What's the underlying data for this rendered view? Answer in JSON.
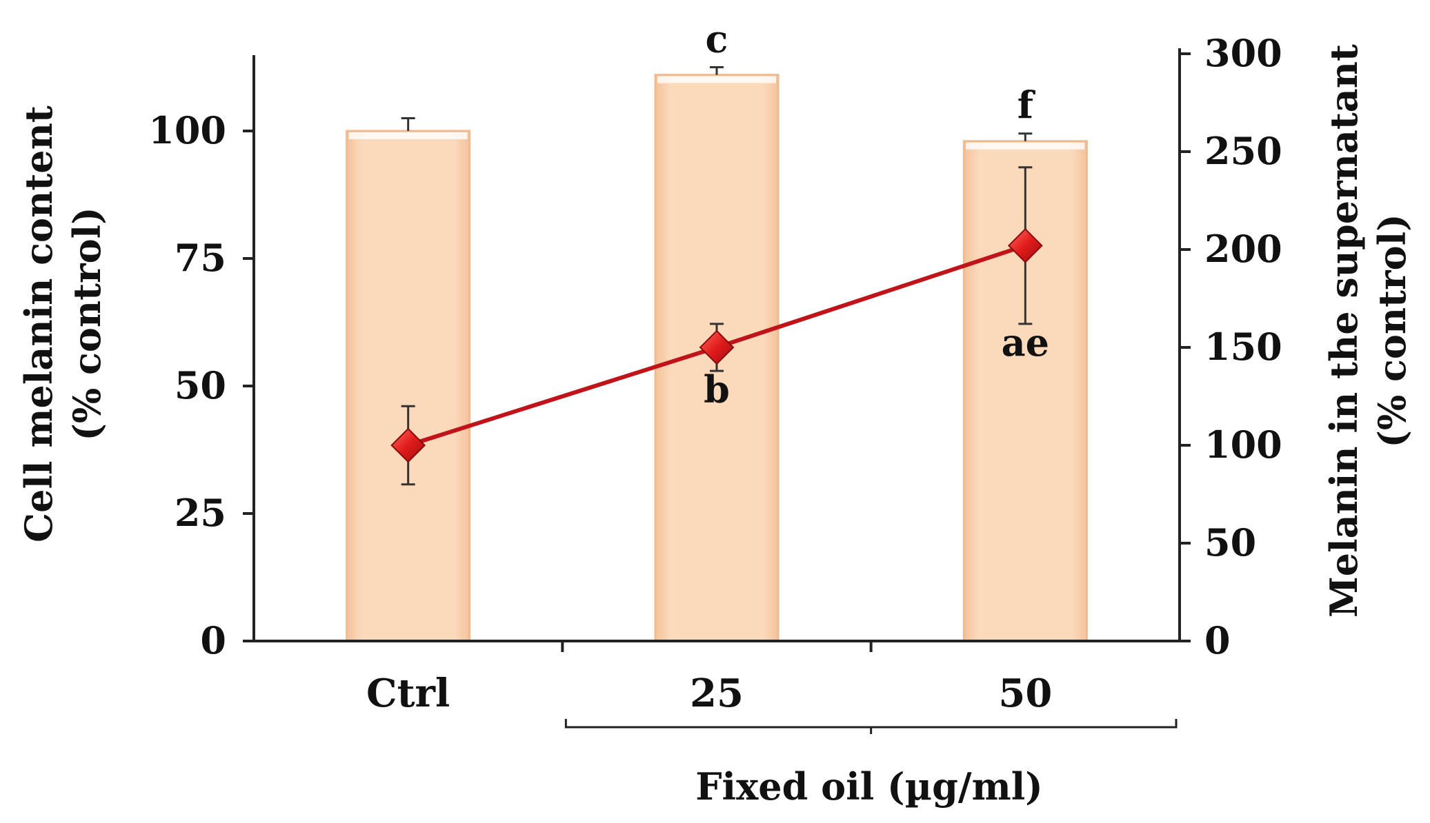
{
  "chart_data": {
    "type": "bar",
    "categories": [
      "Ctrl",
      "25",
      "50"
    ],
    "xlabel": "Fixed oil (µg/ml)",
    "ylabel": "Cell melanin content",
    "ylabel_unit": "(% control)",
    "y2label": "Melanin in the supernatant",
    "y2label_unit": "(% control)",
    "ylim": [
      0,
      115
    ],
    "y2lim": [
      0,
      300
    ],
    "yticks": [
      "0",
      "25",
      "50",
      "75",
      "100"
    ],
    "y2ticks": [
      "0",
      "50",
      "100",
      "150",
      "200",
      "250",
      "300"
    ],
    "grid": false,
    "legend": "none",
    "colors": {
      "bar_fill": "#fbd6b4",
      "bar_edge": "#f1b98e",
      "line": "#c0141a",
      "marker": "#e01b1b",
      "axis": "#222222"
    },
    "series": [
      {
        "kind": "bar",
        "axis": "left",
        "values": [
          100,
          111,
          98
        ],
        "errors": [
          2.5,
          1.5,
          1.5
        ],
        "annotations": [
          "",
          "c",
          "f"
        ]
      },
      {
        "kind": "line",
        "axis": "right",
        "marker": "diamond",
        "values": [
          100,
          150,
          202
        ],
        "errors": [
          20,
          12,
          40
        ],
        "annotations": [
          "",
          "b",
          "ae"
        ]
      }
    ]
  }
}
